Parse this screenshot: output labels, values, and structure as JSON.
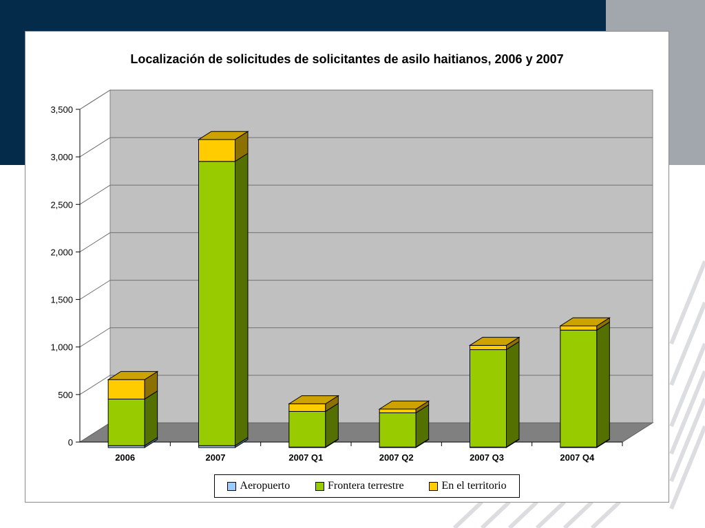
{
  "chart_data": {
    "type": "bar",
    "stacked": true,
    "three_d": true,
    "title": "Localización de solicitudes de solicitantes de asilo haitianos, 2006 y 2007",
    "xlabel": "",
    "ylabel": "",
    "categories": [
      "2006",
      "2007",
      "2007 Q1",
      "2007 Q2",
      "2007 Q3",
      "2007 Q4"
    ],
    "ylim": [
      0,
      3500
    ],
    "yticks": [
      0,
      500,
      1000,
      1500,
      2000,
      2500,
      3000,
      3500
    ],
    "ytick_labels": [
      "0",
      "500",
      "1,000",
      "1,500",
      "2,000",
      "2,500",
      "3,000",
      "3,500"
    ],
    "grid": true,
    "legend_position": "bottom",
    "series": [
      {
        "name": "Aeropuerto",
        "color": "#99ccff",
        "values": [
          20,
          20,
          5,
          5,
          5,
          5
        ]
      },
      {
        "name": "Frontera terrestre",
        "color": "#99cc00",
        "values": [
          490,
          2990,
          375,
          360,
          1025,
          1230
        ]
      },
      {
        "name": "En el territorio",
        "color": "#ffcc00",
        "values": [
          205,
          230,
          80,
          40,
          45,
          45
        ]
      }
    ]
  }
}
